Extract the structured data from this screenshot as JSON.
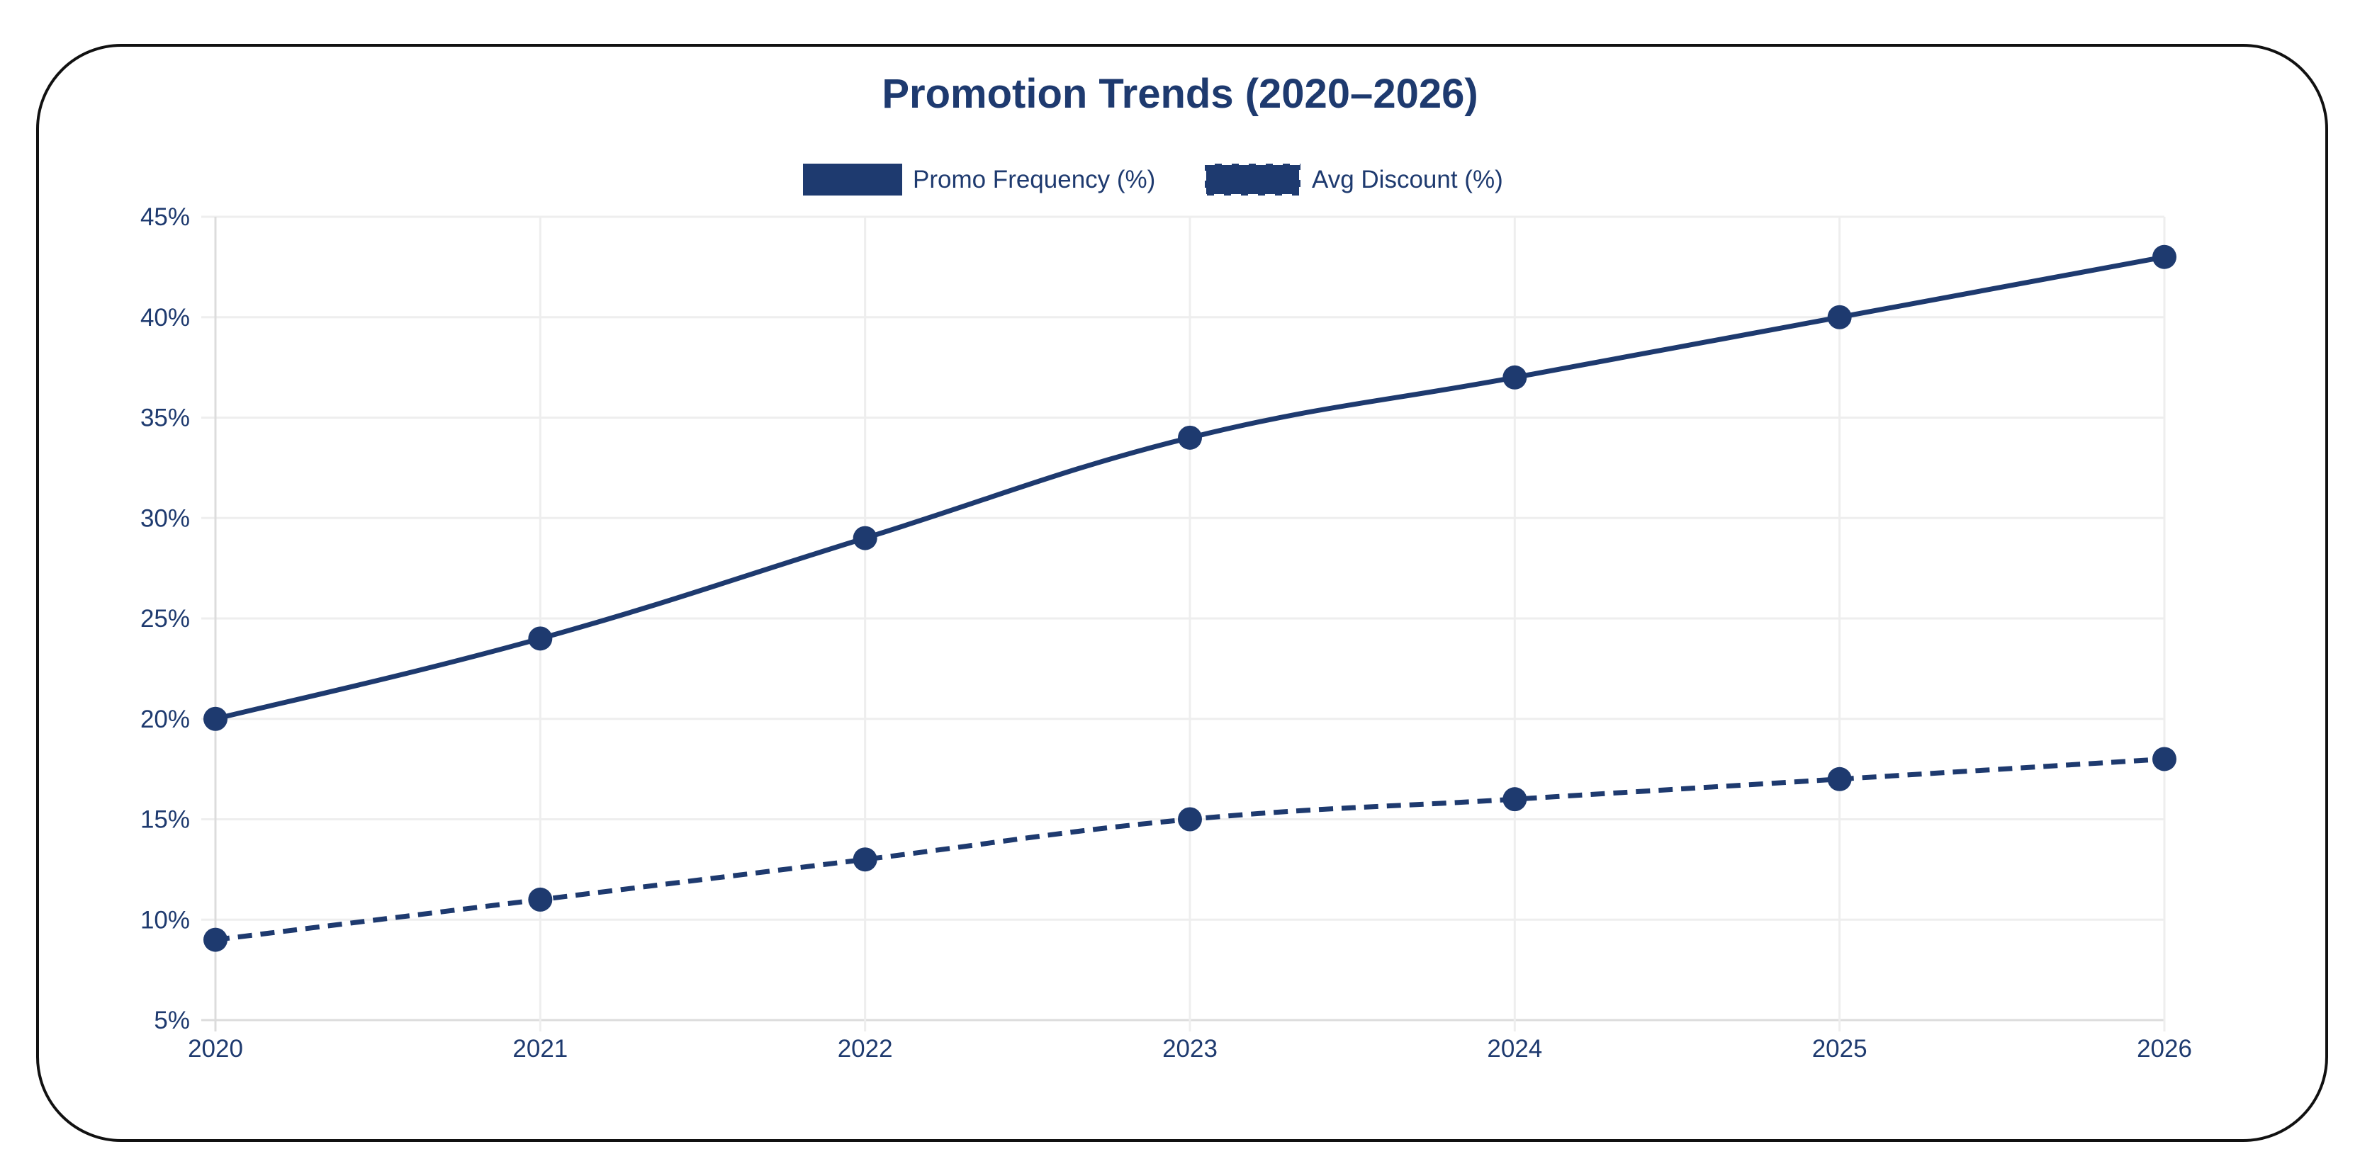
{
  "chart_data": {
    "type": "line",
    "title": "Promotion Trends (2020–2026)",
    "categories": [
      "2020",
      "2021",
      "2022",
      "2023",
      "2024",
      "2025",
      "2026"
    ],
    "series": [
      {
        "name": "Promo Frequency (%)",
        "values": [
          20,
          24,
          29,
          34,
          37,
          40,
          43
        ],
        "style": "solid",
        "color": "#1e3a6f"
      },
      {
        "name": "Avg Discount (%)",
        "values": [
          9,
          11,
          13,
          15,
          16,
          17,
          18
        ],
        "style": "dashed",
        "color": "#1e3a6f"
      }
    ],
    "ylim": [
      5,
      45
    ],
    "yticks": [
      "5%",
      "10%",
      "15%",
      "20%",
      "25%",
      "30%",
      "35%",
      "40%",
      "45%"
    ],
    "xlabel": "",
    "ylabel": "",
    "grid": true,
    "legend": "top-center"
  }
}
